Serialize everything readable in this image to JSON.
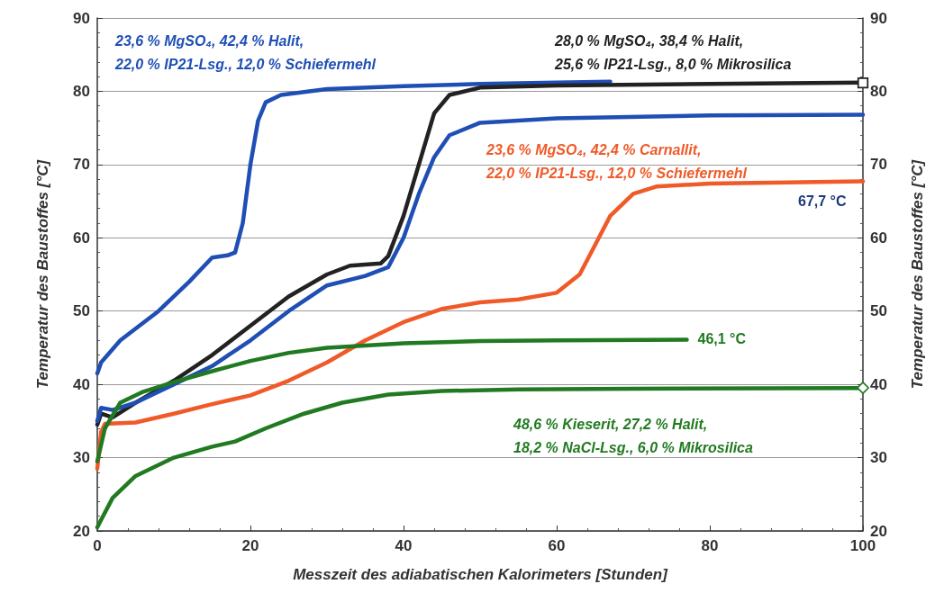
{
  "chart_data": {
    "type": "line",
    "xlabel": "Messzeit des adiabatischen Kalorimeters [Stunden]",
    "ylabel": "Temperatur des Baustoffes [°C]",
    "y2label": "Temperatur des Baustoffes [°C]",
    "xlim": [
      0,
      100
    ],
    "xticks": [
      0,
      20,
      40,
      60,
      80,
      100
    ],
    "ylim": [
      20,
      90
    ],
    "yticks": [
      20,
      30,
      40,
      50,
      60,
      70,
      80,
      90
    ],
    "y2lim": [
      20,
      90
    ],
    "y2ticks": [
      20,
      30,
      40,
      50,
      60,
      70,
      80,
      90
    ],
    "grid": "y",
    "marker": "none",
    "line_style": "solid",
    "series": [
      {
        "color": "#1f4fb5",
        "x": [
          0,
          0.5,
          3,
          8,
          12,
          15,
          17,
          18,
          19,
          20,
          21,
          22,
          24,
          30,
          40,
          50,
          60,
          67
        ],
        "values": [
          41.5,
          43,
          46,
          50,
          54,
          57.3,
          57.6,
          58,
          62,
          70,
          76,
          78.5,
          79.5,
          80.3,
          80.7,
          81,
          81.2,
          81.3
        ]
      },
      {
        "color": "#222222",
        "x": [
          0,
          0.5,
          2,
          5,
          10,
          15,
          20,
          25,
          30,
          33,
          37,
          38,
          40,
          42,
          44,
          46,
          50,
          60,
          80,
          100
        ],
        "values": [
          34.5,
          36,
          35.5,
          37.5,
          40.5,
          44,
          48,
          52,
          55,
          56.2,
          56.5,
          57.5,
          63,
          70,
          77,
          79.5,
          80.5,
          80.8,
          81,
          81.2
        ]
      },
      {
        "color": "#1f4fb5",
        "x": [
          0,
          0.5,
          2,
          5,
          10,
          15,
          20,
          25,
          30,
          35,
          38,
          40,
          42,
          44,
          46,
          50,
          60,
          80,
          100
        ],
        "values": [
          35,
          36.8,
          36.5,
          37.5,
          40,
          42.5,
          46,
          50,
          53.5,
          54.8,
          56,
          60,
          66,
          71,
          74,
          75.7,
          76.3,
          76.7,
          76.8
        ]
      },
      {
        "color": "#f05a28",
        "x": [
          0,
          0.5,
          1,
          5,
          10,
          15,
          20,
          25,
          30,
          35,
          40,
          45,
          50,
          55,
          60,
          63,
          65,
          67,
          70,
          73,
          80,
          100
        ],
        "values": [
          28.5,
          33.5,
          34.6,
          34.8,
          36,
          37.3,
          38.5,
          40.5,
          43,
          46,
          48.5,
          50.3,
          51.2,
          51.6,
          52.5,
          55,
          59,
          63,
          66,
          67,
          67.4,
          67.7
        ]
      },
      {
        "color": "#217a21",
        "x": [
          0,
          1,
          3,
          6,
          10,
          15,
          20,
          25,
          30,
          40,
          50,
          60,
          77
        ],
        "values": [
          29.5,
          34,
          37.5,
          39,
          40.3,
          41.8,
          43.2,
          44.3,
          45,
          45.6,
          45.9,
          46,
          46.1
        ]
      },
      {
        "color": "#217a21",
        "x": [
          0,
          0.5,
          2,
          5,
          10,
          15,
          18,
          22,
          27,
          32,
          38,
          45,
          55,
          70,
          100
        ],
        "values": [
          20.5,
          21.5,
          24.5,
          27.5,
          30,
          31.5,
          32.2,
          34,
          36,
          37.5,
          38.6,
          39.1,
          39.3,
          39.4,
          39.5
        ]
      }
    ],
    "annotations": [
      "23,6 % MgSO₄, 42,4 % Halit,\n22,0 % IP21-Lsg., 12,0 % Schiefermehl",
      "28,0 % MgSO₄, 38,4 % Halit,\n25,6 % IP21-Lsg., 8,0 % Mikrosilica",
      "23,6 % MgSO₄, 42,4 % Carnallit,\n22,0 % IP21-Lsg., 12,0 % Schiefermehl",
      {
        "text": "67,7 °C",
        "x": 100,
        "y": 67.7
      },
      {
        "text": "46,1 °C",
        "x": 77,
        "y": 46.1
      },
      "48,6 % Kieserit, 27,2 % Halit,\n18,2 % NaCl-Lsg., 6,0 % Mikrosilica"
    ]
  }
}
